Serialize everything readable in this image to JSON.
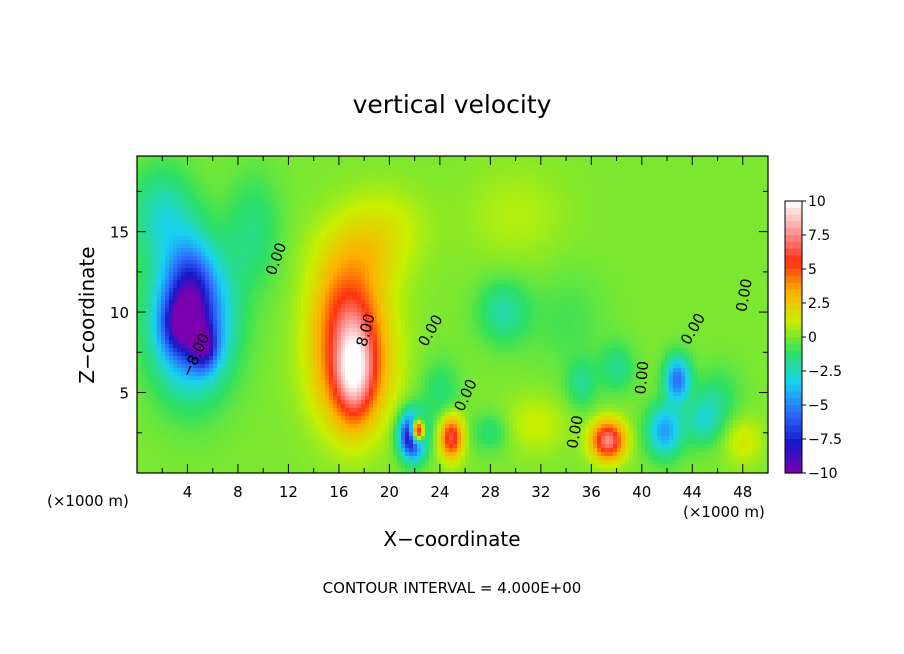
{
  "chart_data": {
    "type": "heatmap",
    "title": "vertical velocity",
    "xlabel": "X−coordinate",
    "ylabel": "Z−coordinate",
    "x_unit_label": "(×1000 m)",
    "y_unit_label": "(×1000 m)",
    "footer": "CONTOUR INTERVAL = 4.000E+00",
    "xlim": [
      0,
      50
    ],
    "ylim": [
      0,
      19.7
    ],
    "x_ticks": [
      4,
      8,
      12,
      16,
      20,
      24,
      28,
      32,
      36,
      40,
      44,
      48
    ],
    "x_tick_labels": [
      "4",
      "8",
      "12",
      "16",
      "20",
      "24",
      "28",
      "32",
      "36",
      "40",
      "44",
      "48"
    ],
    "y_ticks": [
      5,
      10,
      15
    ],
    "y_tick_labels": [
      "5",
      "10",
      "15"
    ],
    "colorbar": {
      "min": -10,
      "max": 10,
      "ticks": [
        10,
        7.5,
        5,
        2.5,
        0,
        -2.5,
        -5,
        -7.5,
        -10
      ],
      "tick_labels": [
        "10",
        "7.5",
        "5",
        "2.5",
        "0",
        "−2.5",
        "−5",
        "−7.5",
        "−10"
      ],
      "colors": [
        "#7a00b0",
        "#1818c8",
        "#2d6cff",
        "#19d2f0",
        "#2ee060",
        "#c8f000",
        "#ffb000",
        "#ff3010",
        "#ff9a9a",
        "#ffffff"
      ]
    },
    "contour_interval": 4,
    "contour_labels": [
      {
        "text": "0.00",
        "x": 11.4,
        "z": 13.2,
        "angle": -70
      },
      {
        "text": "8.00",
        "x": 18.5,
        "z": 8.8,
        "angle": -75
      },
      {
        "text": "−8.00",
        "x": 5.0,
        "z": 7.2,
        "angle": -65
      },
      {
        "text": "0.00",
        "x": 23.6,
        "z": 8.7,
        "angle": -60
      },
      {
        "text": "0.00",
        "x": 26.4,
        "z": 4.7,
        "angle": -65
      },
      {
        "text": "0.00",
        "x": 35.1,
        "z": 2.5,
        "angle": -80
      },
      {
        "text": "0.00",
        "x": 40.4,
        "z": 5.9,
        "angle": -85
      },
      {
        "text": "0.00",
        "x": 44.4,
        "z": 8.8,
        "angle": -60
      },
      {
        "text": "0.00",
        "x": 48.5,
        "z": 11.0,
        "angle": -80
      }
    ],
    "features": [
      {
        "x": 4.3,
        "z": 9.5,
        "rx": 3.0,
        "rz": 4.2,
        "value": -7.5
      },
      {
        "x": 3.5,
        "z": 9.2,
        "rx": 1.4,
        "rz": 1.6,
        "value": -4.0
      },
      {
        "x": 5.3,
        "z": 7.8,
        "rx": 1.0,
        "rz": 1.3,
        "value": -4.5
      },
      {
        "x": 4.2,
        "z": 11.5,
        "rx": 1.6,
        "rz": 2.8,
        "value": -3.0
      },
      {
        "x": 2.0,
        "z": 16.0,
        "rx": 2.5,
        "rz": 3.0,
        "value": -2.5
      },
      {
        "x": 9.2,
        "z": 15.0,
        "rx": 2.2,
        "rz": 3.5,
        "value": -1.6
      },
      {
        "x": 17.0,
        "z": 7.0,
        "rx": 3.0,
        "rz": 4.0,
        "value": 6.0
      },
      {
        "x": 17.2,
        "z": 6.2,
        "rx": 1.5,
        "rz": 3.0,
        "value": 5.0
      },
      {
        "x": 16.5,
        "z": 10.5,
        "rx": 2.6,
        "rz": 2.6,
        "value": 2.5
      },
      {
        "x": 17.5,
        "z": 13.5,
        "rx": 3.5,
        "rz": 2.5,
        "value": 2.0
      },
      {
        "x": 19.5,
        "z": 15.5,
        "rx": 3.5,
        "rz": 2.5,
        "value": 1.0
      },
      {
        "x": 21.8,
        "z": 2.3,
        "rx": 1.0,
        "rz": 1.4,
        "value": -10.0
      },
      {
        "x": 22.2,
        "z": 2.6,
        "rx": 0.5,
        "rz": 0.7,
        "value": 14.0
      },
      {
        "x": 24.9,
        "z": 2.2,
        "rx": 0.9,
        "rz": 1.3,
        "value": 6.5
      },
      {
        "x": 24.0,
        "z": 5.0,
        "rx": 1.5,
        "rz": 2.0,
        "value": -1.5
      },
      {
        "x": 29.0,
        "z": 10.0,
        "rx": 2.0,
        "rz": 2.0,
        "value": -2.2
      },
      {
        "x": 28.0,
        "z": 2.5,
        "rx": 1.5,
        "rz": 1.2,
        "value": -1.5
      },
      {
        "x": 31.5,
        "z": 3.0,
        "rx": 2.5,
        "rz": 1.8,
        "value": 1.2
      },
      {
        "x": 37.3,
        "z": 2.0,
        "rx": 1.3,
        "rz": 1.2,
        "value": 7.5
      },
      {
        "x": 35.2,
        "z": 5.5,
        "rx": 1.2,
        "rz": 1.5,
        "value": -1.8
      },
      {
        "x": 38.0,
        "z": 6.5,
        "rx": 1.4,
        "rz": 1.5,
        "value": -1.8
      },
      {
        "x": 41.8,
        "z": 2.6,
        "rx": 1.4,
        "rz": 1.6,
        "value": -4.5
      },
      {
        "x": 42.8,
        "z": 5.8,
        "rx": 1.0,
        "rz": 1.4,
        "value": -5.5
      },
      {
        "x": 44.8,
        "z": 3.2,
        "rx": 1.3,
        "rz": 1.5,
        "value": -2.2
      },
      {
        "x": 46.0,
        "z": 4.5,
        "rx": 1.8,
        "rz": 2.0,
        "value": -1.5
      },
      {
        "x": 30.0,
        "z": 16.0,
        "rx": 4.0,
        "rz": 3.0,
        "value": 0.8
      },
      {
        "x": 48.0,
        "z": 2.0,
        "rx": 1.5,
        "rz": 1.5,
        "value": 1.5
      },
      {
        "x": 34.0,
        "z": 9.5,
        "rx": 3.0,
        "rz": 3.0,
        "value": -0.8
      }
    ]
  }
}
